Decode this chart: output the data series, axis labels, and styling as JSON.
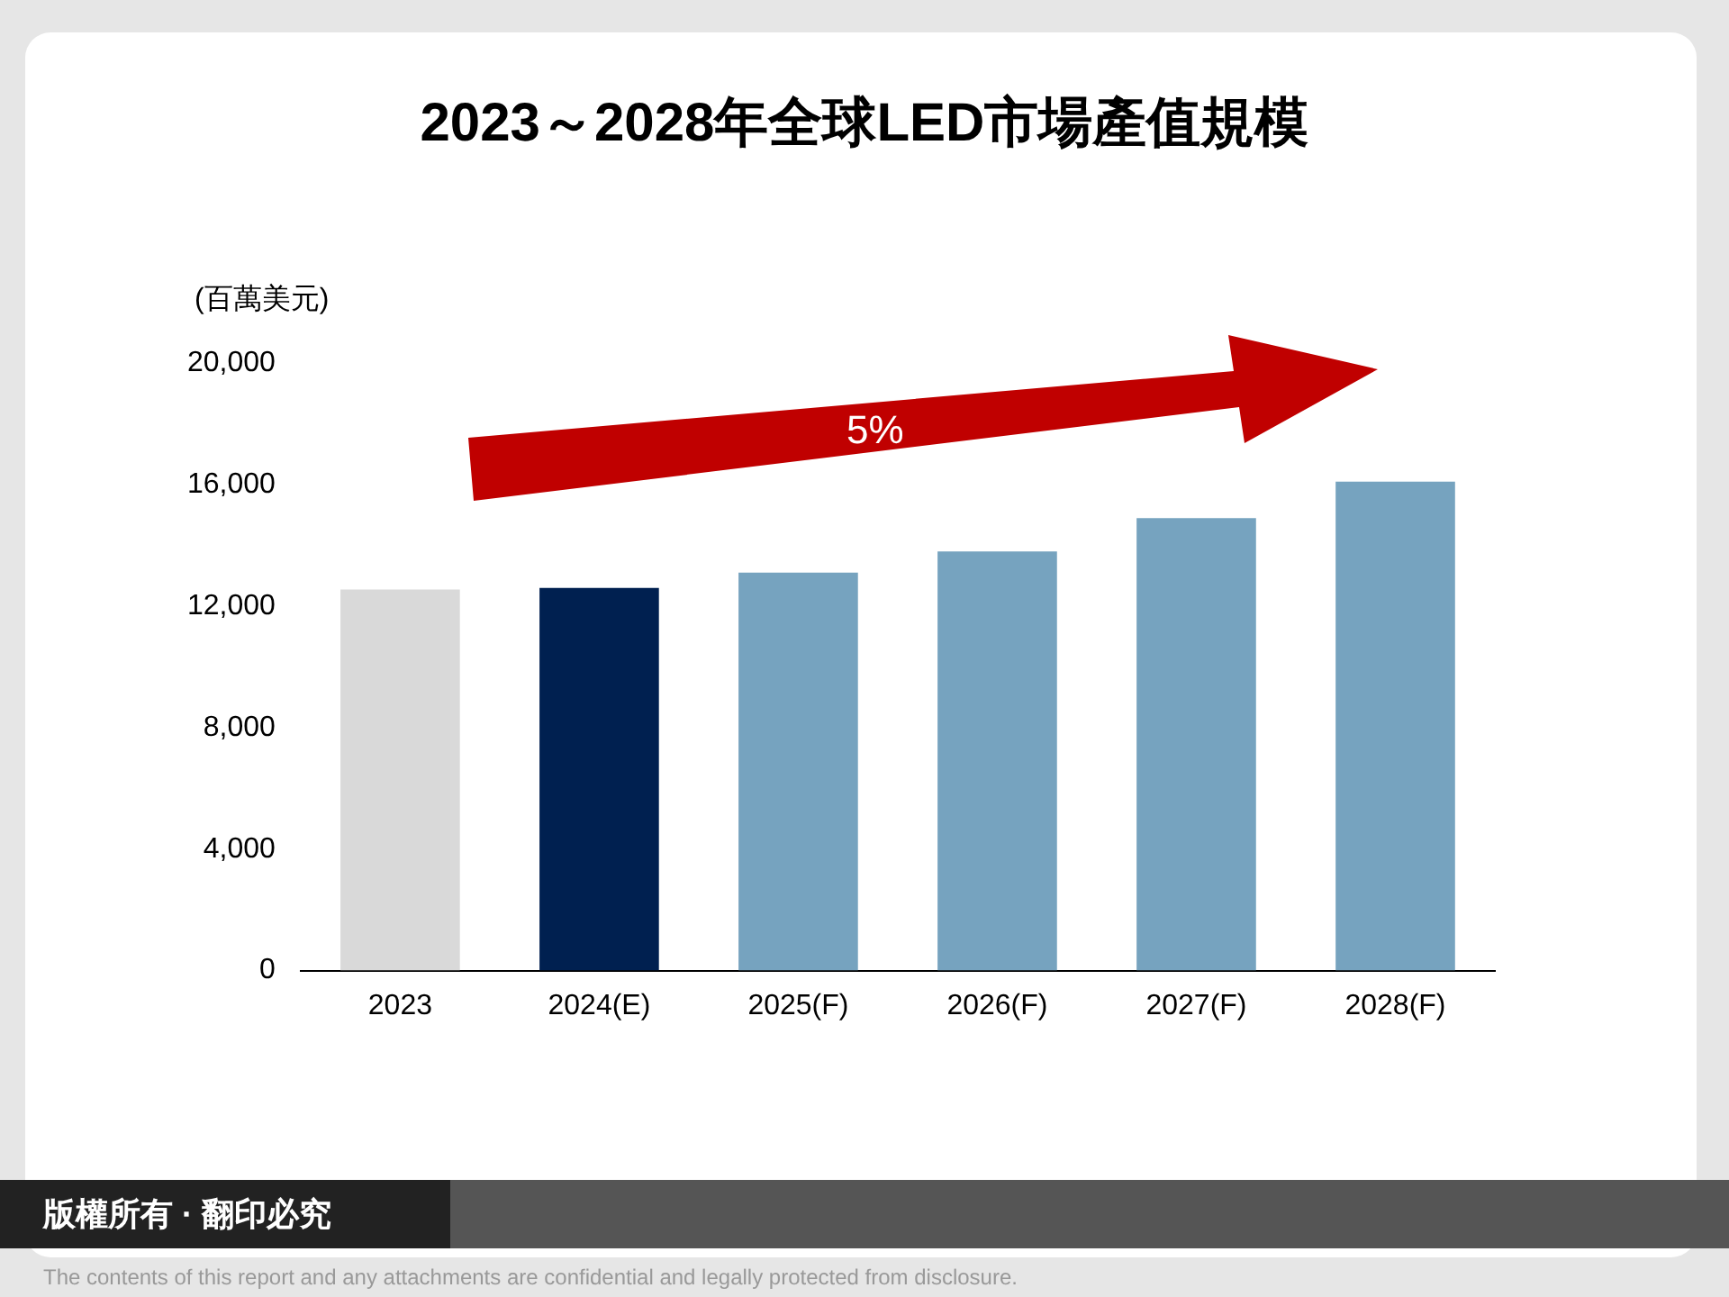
{
  "chart_data": {
    "type": "bar",
    "title": "2023～2028年全球LED市場產值規模",
    "ylabel": "(百萬美元)",
    "categories": [
      "2023",
      "2024(E)",
      "2025(F)",
      "2026(F)",
      "2027(F)",
      "2028(F)"
    ],
    "values": [
      12550,
      12600,
      13100,
      13800,
      14900,
      16100
    ],
    "colors": [
      "#d9d9d9",
      "#002050",
      "#76a3bf",
      "#76a3bf",
      "#76a3bf",
      "#76a3bf"
    ],
    "ylim": [
      0,
      20000
    ],
    "yticks": [
      {
        "value": 0,
        "label": "0"
      },
      {
        "value": 4000,
        "label": "4,000"
      },
      {
        "value": 8000,
        "label": "8,000"
      },
      {
        "value": 12000,
        "label": "12,000"
      },
      {
        "value": 16000,
        "label": "16,000"
      },
      {
        "value": 20000,
        "label": "20,000"
      }
    ],
    "grid": false,
    "legend": false,
    "annotations": [
      "5%",
      "版權所有 · 翻印必究",
      "The contents of this report and any attachments are confidential and legally protected from disclosure."
    ]
  }
}
